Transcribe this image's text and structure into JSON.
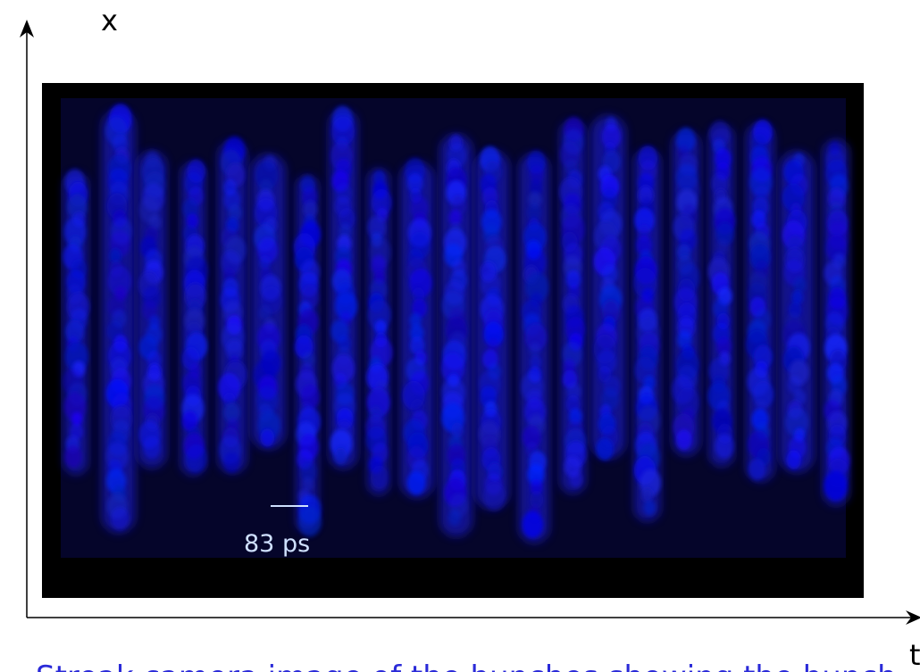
{
  "axes": {
    "y_label": "x",
    "x_label": "t"
  },
  "image": {
    "scale_label": "83 ps"
  },
  "caption": "Streak camera image of the bunches showing the bunch"
}
